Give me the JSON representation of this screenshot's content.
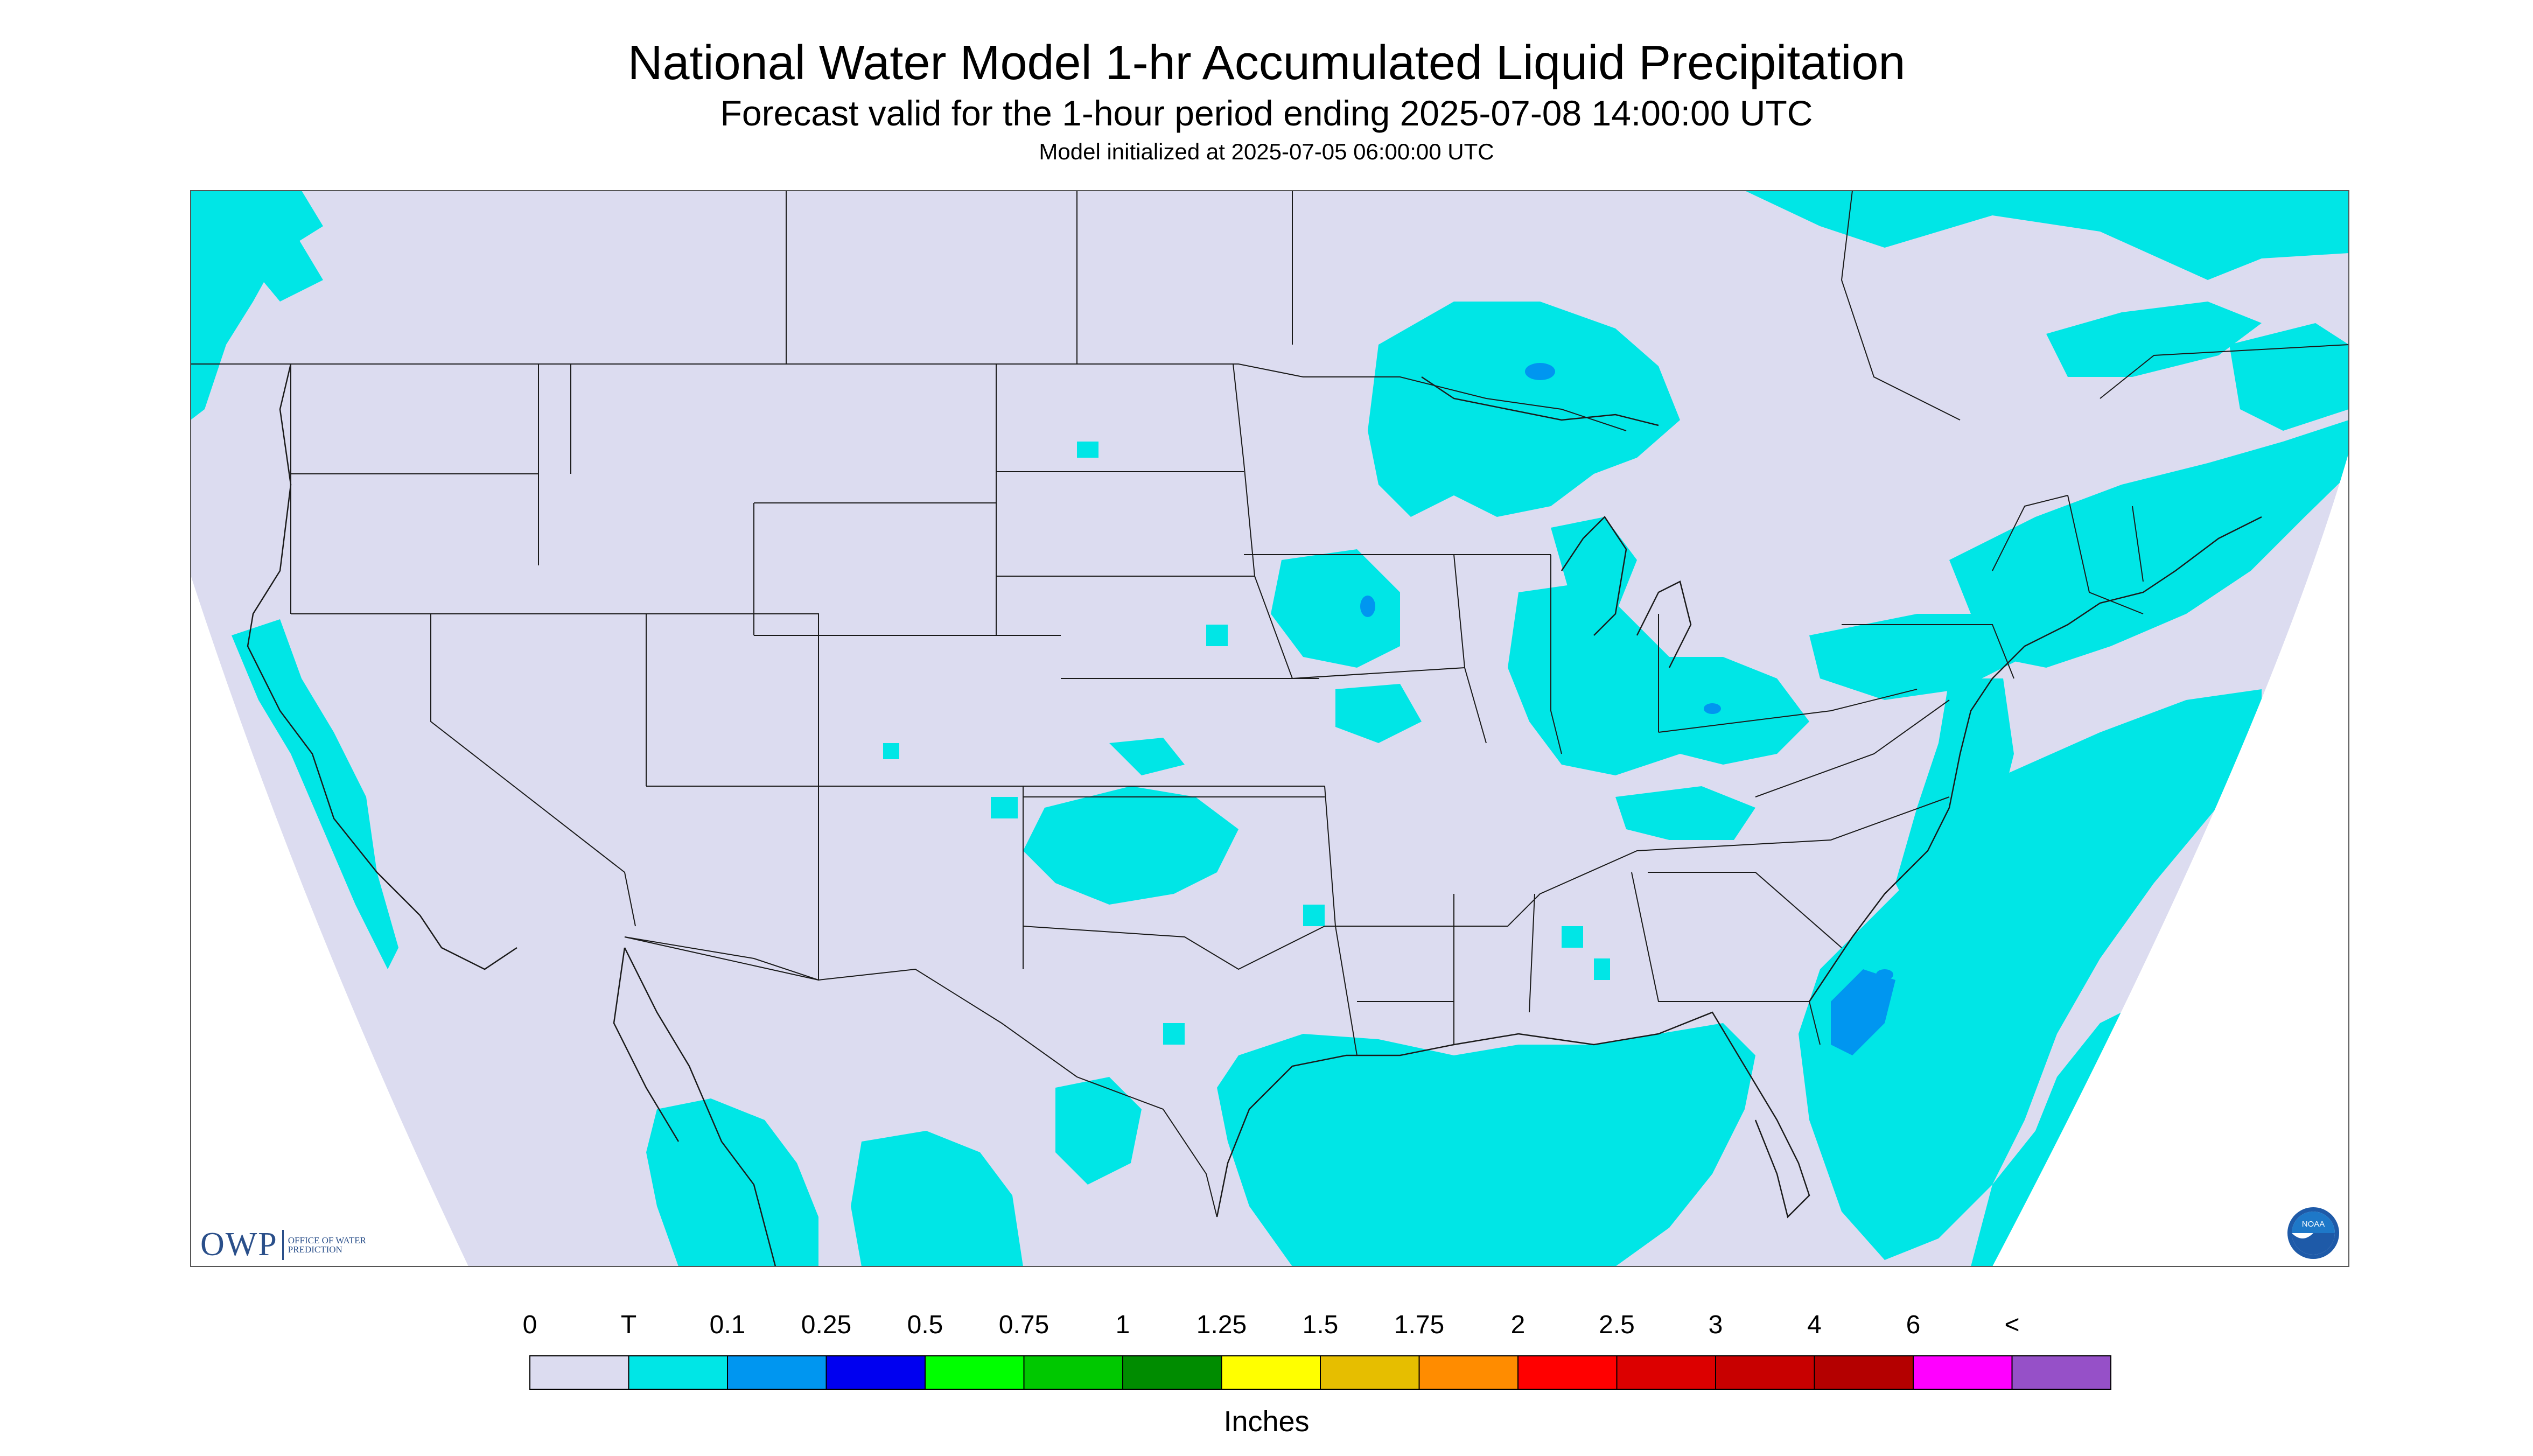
{
  "header": {
    "title": "National Water Model 1-hr Accumulated Liquid Precipitation",
    "subtitle": "Forecast valid for the 1-hour period ending 2025-07-08 14:00:00 UTC",
    "init": "Model initialized at 2025-07-05 06:00:00 UTC"
  },
  "logos": {
    "owp_mark": "OWP",
    "owp_text": "OFFICE OF WATER PREDICTION",
    "noaa_text": "NOAA"
  },
  "legend": {
    "unit_label": "Inches",
    "tick_labels": [
      "0",
      "T",
      "0.1",
      "0.25",
      "0.5",
      "0.75",
      "1",
      "1.25",
      "1.5",
      "1.75",
      "2",
      "2.5",
      "3",
      "4",
      "6",
      "<"
    ],
    "colors": [
      "#dcdcf0",
      "#00e6e6",
      "#0096f0",
      "#0000f0",
      "#00ff00",
      "#00c800",
      "#008c00",
      "#ffff00",
      "#e6be00",
      "#ff8c00",
      "#ff0000",
      "#dc0000",
      "#c80000",
      "#b40000",
      "#ff00ff",
      "#9650c8"
    ]
  },
  "colors": {
    "no_precip": "#dcdcf0",
    "trace": "#00e6e6",
    "light": "#0096f0",
    "background": "#ffffff",
    "boundary": "#1a1a1a"
  }
}
